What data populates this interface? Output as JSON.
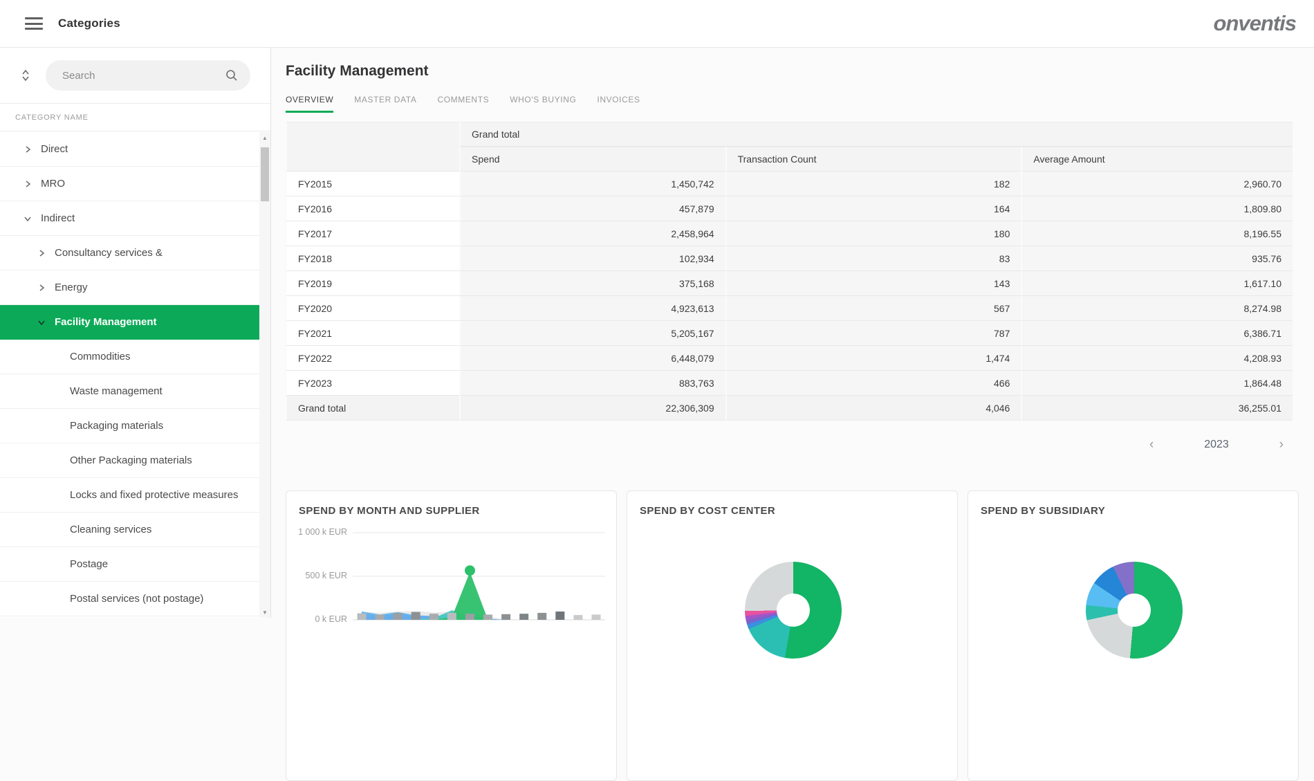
{
  "header": {
    "menu_icon": "hamburger",
    "title": "Categories",
    "logo": "onventis"
  },
  "sidebar": {
    "sort_icon": "expand-collapse",
    "search_placeholder": "Search",
    "column_header": "CATEGORY NAME",
    "items": [
      {
        "label": "Direct",
        "level": 1,
        "chevron": "right",
        "selected": false
      },
      {
        "label": "MRO",
        "level": 1,
        "chevron": "right",
        "selected": false
      },
      {
        "label": "Indirect",
        "level": 1,
        "chevron": "down",
        "selected": false
      },
      {
        "label": "Consultancy services &",
        "level": 2,
        "chevron": "right",
        "selected": false
      },
      {
        "label": "Energy",
        "level": 2,
        "chevron": "right",
        "selected": false
      },
      {
        "label": "Facility Management",
        "level": 2,
        "chevron": "down",
        "selected": true
      },
      {
        "label": "Commodities",
        "level": 3,
        "chevron": "none",
        "selected": false
      },
      {
        "label": "Waste management",
        "level": 3,
        "chevron": "none",
        "selected": false
      },
      {
        "label": "Packaging materials",
        "level": 3,
        "chevron": "none",
        "selected": false
      },
      {
        "label": "Other Packaging materials",
        "level": 3,
        "chevron": "none",
        "selected": false
      },
      {
        "label": "Locks and fixed protective measures",
        "level": 3,
        "chevron": "none",
        "selected": false
      },
      {
        "label": "Cleaning services",
        "level": 3,
        "chevron": "none",
        "selected": false
      },
      {
        "label": "Postage",
        "level": 3,
        "chevron": "none",
        "selected": false
      },
      {
        "label": "Postal services (not postage)",
        "level": 3,
        "chevron": "none",
        "selected": false
      }
    ]
  },
  "main": {
    "title": "Facility Management",
    "tabs": [
      {
        "label": "OVERVIEW",
        "active": true
      },
      {
        "label": "MASTER DATA",
        "active": false
      },
      {
        "label": "COMMENTS",
        "active": false
      },
      {
        "label": "WHO'S BUYING",
        "active": false
      },
      {
        "label": "INVOICES",
        "active": false
      }
    ],
    "table": {
      "group_header": "Grand total",
      "columns": [
        "Spend",
        "Transaction Count",
        "Average Amount"
      ],
      "rows": [
        [
          "FY2015",
          "1,450,742",
          "182",
          "2,960.70"
        ],
        [
          "FY2016",
          "457,879",
          "164",
          "1,809.80"
        ],
        [
          "FY2017",
          "2,458,964",
          "180",
          "8,196.55"
        ],
        [
          "FY2018",
          "102,934",
          "83",
          "935.76"
        ],
        [
          "FY2019",
          "375,168",
          "143",
          "1,617.10"
        ],
        [
          "FY2020",
          "4,923,613",
          "567",
          "8,274.98"
        ],
        [
          "FY2021",
          "5,205,167",
          "787",
          "6,386.71"
        ],
        [
          "FY2022",
          "6,448,079",
          "1,474",
          "4,208.93"
        ],
        [
          "FY2023",
          "883,763",
          "466",
          "1,864.48"
        ]
      ],
      "total_row": [
        "Grand total",
        "22,306,309",
        "4,046",
        "36,255.01"
      ]
    },
    "pagination": {
      "prev": "‹",
      "year": "2023",
      "next": "›"
    }
  },
  "colors": {
    "accent_green": "#0caa58",
    "selected_row": "#0caa58",
    "tab_underline": "#0caa58"
  },
  "chart_data": [
    {
      "type": "area",
      "title": "SPEND BY MONTH AND SUPPLIER",
      "ylabel": "k EUR",
      "y_ticks": [
        "1 000 k EUR",
        "500 k EUR",
        "0 k EUR"
      ],
      "ylim": [
        0,
        1000
      ],
      "x": [
        1,
        2,
        3,
        4,
        5,
        6,
        7,
        8,
        9,
        10,
        11,
        12,
        13,
        14
      ],
      "series": [
        {
          "name": "supplier-gray-base",
          "kind": "area",
          "color": "#e9e9e9",
          "values": [
            95,
            80,
            95,
            100,
            85,
            95,
            85,
            40,
            0,
            0,
            0,
            0,
            0,
            0
          ]
        },
        {
          "name": "supplier-orange",
          "kind": "area",
          "color": "#f2a44f",
          "values": [
            40,
            30,
            36,
            30,
            26,
            32,
            24,
            8,
            0,
            0,
            0,
            0,
            0,
            0
          ]
        },
        {
          "name": "supplier-magenta",
          "kind": "area",
          "color": "#ee5fa2",
          "values": [
            62,
            45,
            58,
            42,
            36,
            48,
            36,
            10,
            0,
            0,
            0,
            0,
            0,
            0
          ]
        },
        {
          "name": "supplier-blue",
          "kind": "area",
          "color": "#5fb1ef",
          "values": [
            95,
            60,
            88,
            52,
            44,
            60,
            50,
            12,
            0,
            0,
            0,
            0,
            0,
            0
          ]
        },
        {
          "name": "supplier-teal",
          "kind": "area",
          "color": "#49c8c0",
          "values": [
            0,
            0,
            0,
            0,
            20,
            110,
            40,
            0,
            0,
            0,
            0,
            0,
            0,
            0
          ]
        },
        {
          "name": "supplier-green",
          "kind": "area-marker",
          "color": "#2dc06c",
          "values": [
            0,
            0,
            0,
            0,
            0,
            30,
            550,
            0,
            0,
            0,
            0,
            0,
            0,
            0
          ]
        },
        {
          "name": "other-suppliers-bars",
          "kind": "bar",
          "bar_colors": [
            "#b9bcbe",
            "#a8abad",
            "#9aa0a3",
            "#8d9194",
            "#a8abad",
            "#b9bcbe",
            "#9aa0a3",
            "#a8abad",
            "#8d9194",
            "#7f8486",
            "#8d9194",
            "#6f7578",
            "#c8cacc",
            "#c8cacc"
          ],
          "values": [
            75,
            60,
            80,
            90,
            70,
            80,
            70,
            60,
            65,
            70,
            80,
            95,
            55,
            60
          ]
        }
      ]
    },
    {
      "type": "pie",
      "title": "SPEND BY COST CENTER",
      "slices": [
        {
          "name": "cost-center-1",
          "from": 0,
          "to": 190,
          "color": "#12b465"
        },
        {
          "name": "cost-center-hidden",
          "from": 190,
          "to": 247,
          "color": "#2bbfb4"
        },
        {
          "name": "cost-center-2",
          "from": 247,
          "to": 253,
          "color": "#3b8fe0"
        },
        {
          "name": "cost-center-3",
          "from": 253,
          "to": 258,
          "color": "#7a64cc"
        },
        {
          "name": "cost-center-4",
          "from": 258,
          "to": 263,
          "color": "#a455c8"
        },
        {
          "name": "cost-center-5",
          "from": 263,
          "to": 269,
          "color": "#e8529e"
        },
        {
          "name": "cost-center-other",
          "from": 269,
          "to": 360,
          "color": "#d6d9da"
        }
      ]
    },
    {
      "type": "pie",
      "title": "SPEND BY SUBSIDIARY",
      "slices": [
        {
          "name": "subsidiary-1",
          "from": 0,
          "to": 185,
          "color": "#16b869"
        },
        {
          "name": "subsidiary-hidden",
          "from": 185,
          "to": 258,
          "color": "#d6d9da"
        },
        {
          "name": "subsidiary-2",
          "from": 258,
          "to": 276,
          "color": "#2dbfae"
        },
        {
          "name": "subsidiary-3",
          "from": 276,
          "to": 304,
          "color": "#57bdf2"
        },
        {
          "name": "subsidiary-4",
          "from": 304,
          "to": 334,
          "color": "#2585d6"
        },
        {
          "name": "subsidiary-5",
          "from": 334,
          "to": 360,
          "color": "#8371c9"
        }
      ]
    }
  ]
}
